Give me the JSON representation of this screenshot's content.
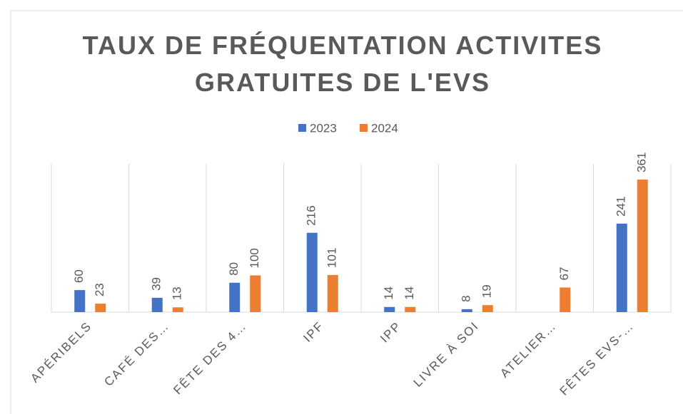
{
  "chart_data": {
    "type": "bar",
    "title": "TAUX DE FRÉQUENTATION ACTIVITES GRATUITES DE L'EVS",
    "categories": [
      "APÉRIBELS",
      "CAFÉ DES…",
      "FÊTE DES 4…",
      "IPF",
      "IPP",
      "LIVRE À SOI",
      "ATELIER…",
      "FÊTES EVS-…"
    ],
    "series": [
      {
        "name": "2023",
        "color": "#4472c4",
        "values": [
          60,
          39,
          80,
          216,
          14,
          8,
          null,
          241
        ]
      },
      {
        "name": "2024",
        "color": "#ed7d31",
        "values": [
          23,
          13,
          100,
          101,
          14,
          19,
          67,
          361
        ]
      }
    ],
    "legend": "top",
    "data_labels": true
  }
}
